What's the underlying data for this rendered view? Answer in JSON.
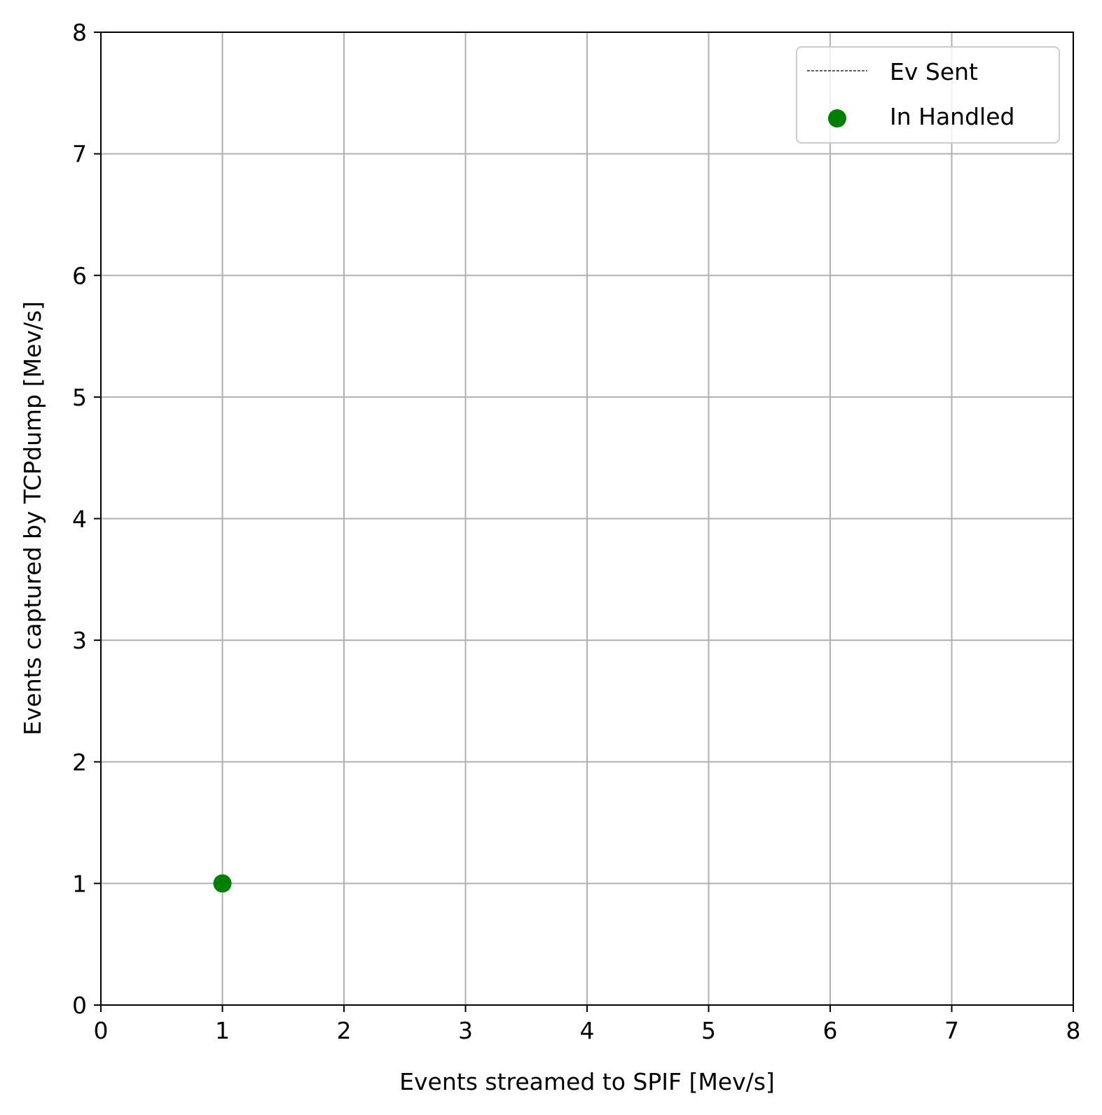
{
  "chart_data": {
    "type": "scatter",
    "title": "",
    "xlabel": "Events streamed to SPIF [Mev/s]",
    "ylabel": "Events captured by TCPdump [Mev/s]",
    "xlim": [
      0,
      8
    ],
    "ylim": [
      0,
      8
    ],
    "xticks": [
      "0",
      "1",
      "2",
      "3",
      "4",
      "5",
      "6",
      "7",
      "8"
    ],
    "yticks": [
      "0",
      "1",
      "2",
      "3",
      "4",
      "5",
      "6",
      "7",
      "8"
    ],
    "grid": true,
    "legend_position": "top-right",
    "series": [
      {
        "name": "Ev Sent",
        "kind": "line",
        "style": "dashed",
        "color": "#000000",
        "x": [],
        "y": []
      },
      {
        "name": "In Handled",
        "kind": "scatter",
        "color": "#008000",
        "x": [
          1
        ],
        "y": [
          1
        ]
      }
    ]
  }
}
